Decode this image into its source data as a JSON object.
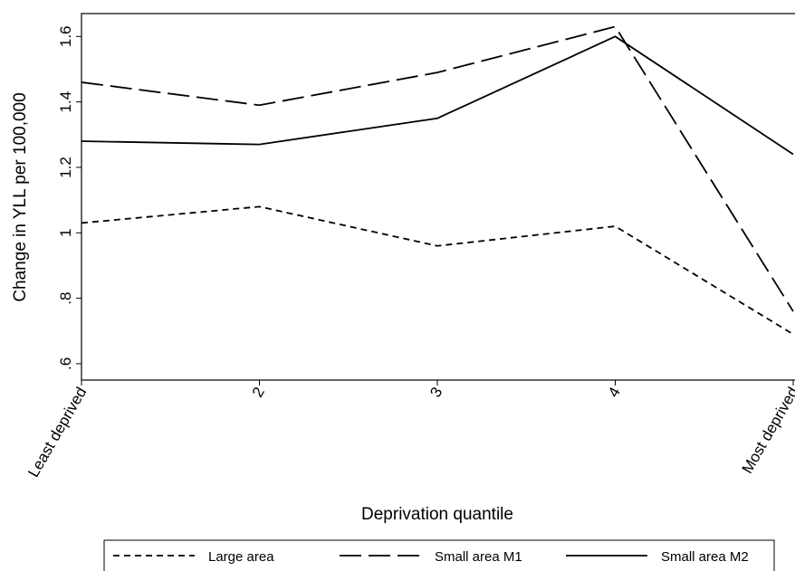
{
  "chart_data": {
    "type": "line",
    "x_label": "Deprivation quantile",
    "y_label": "Change in YLL per 100,000",
    "categories": [
      "Least deprived",
      "2",
      "3",
      "4",
      "Most deprived"
    ],
    "series": [
      {
        "name": "Large area",
        "color": "#000000",
        "dash": "7,5",
        "values": [
          1.03,
          1.08,
          0.96,
          1.02,
          0.69
        ]
      },
      {
        "name": "Small area M1",
        "color": "#000000",
        "dash": "24,8",
        "values": [
          1.46,
          1.39,
          1.49,
          1.63,
          0.76
        ]
      },
      {
        "name": "Small area M2",
        "color": "#000000",
        "dash": "none",
        "values": [
          1.28,
          1.27,
          1.35,
          1.6,
          1.24
        ]
      }
    ],
    "ylim": [
      0.55,
      1.67
    ],
    "yticks": [
      {
        "value": 0.6,
        "label": ".6"
      },
      {
        "value": 0.8,
        "label": ".8"
      },
      1,
      1.2,
      1.4,
      1.6
    ],
    "grid": false,
    "legend": "bottom"
  }
}
